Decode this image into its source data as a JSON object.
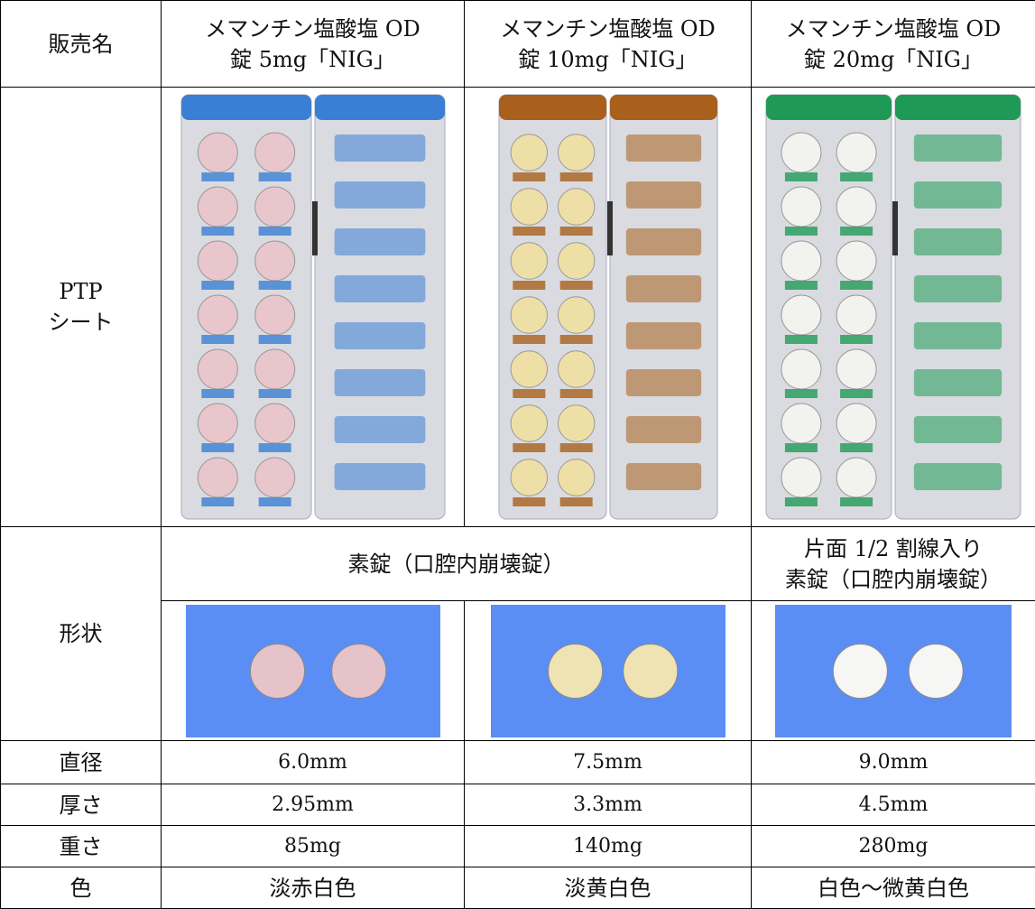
{
  "table": {
    "header": [
      "販売名",
      "メマンチン塩酸塩 OD\n錠 5mg「NIG」",
      "メマンチン塩酸塩 OD\n錠 10mg「NIG」",
      "メマンチン塩酸塩 OD\n錠 20mg「NIG」"
    ],
    "ptp_label": "PTP\nシート",
    "shape_label": "形状",
    "shape_types": [
      "素錠（口腔内崩壊錠）",
      "片面 1/2 割線入り\n素錠（口腔内崩壊錠）"
    ],
    "rows": [
      [
        "直径",
        "6.0mm",
        "7.5mm",
        "9.0mm"
      ],
      [
        "厚さ",
        "2.95mm",
        "3.3mm",
        "4.5mm"
      ],
      [
        "重さ",
        "85mg",
        "140mg",
        "280mg"
      ],
      [
        "色",
        "淡赤白色",
        "淡黄白色",
        "白色～微黄白色"
      ]
    ]
  }
}
